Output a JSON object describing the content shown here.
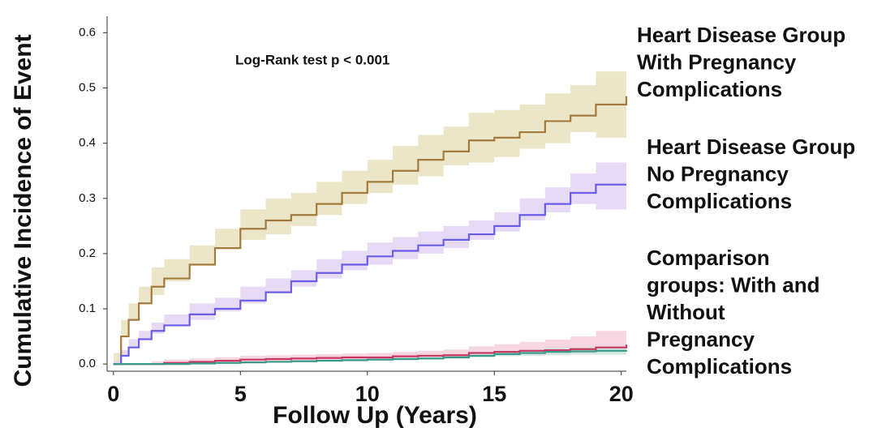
{
  "chart_data": {
    "type": "step",
    "xlabel": "Follow Up (Years)",
    "ylabel": "Cumulative Incidence of Event",
    "annotations": [
      {
        "text": "Log-Rank test p < 0.001"
      }
    ],
    "group_labels": [
      {
        "lines": [
          "Heart Disease Group",
          "With Pregnancy",
          "Complications"
        ]
      },
      {
        "lines": [
          "Heart Disease Group",
          "No Pregnancy",
          "Complications"
        ]
      },
      {
        "lines": [
          "Comparison",
          "groups: With and",
          "Without",
          "Pregnancy",
          "Complications"
        ]
      }
    ],
    "xlim": [
      -0.25,
      20.2
    ],
    "ylim": [
      -0.013,
      0.63
    ],
    "xticks": [
      0,
      5,
      10,
      15,
      20
    ],
    "yticks": [
      {
        "value": 0,
        "label": "0.0"
      },
      0.1,
      0.2,
      0.3,
      0.4,
      0.5,
      0.6
    ],
    "x": [
      0,
      0.3,
      0.6,
      1,
      1.5,
      2,
      3,
      4,
      5,
      6,
      7,
      8,
      9,
      10,
      11,
      12,
      13,
      14,
      15,
      16,
      17,
      18,
      19,
      20.2
    ],
    "series": [
      {
        "color": "#a47a3c",
        "band_color": "#e6e2bd",
        "values": [
          0,
          0.05,
          0.08,
          0.11,
          0.14,
          0.155,
          0.18,
          0.21,
          0.245,
          0.26,
          0.27,
          0.29,
          0.31,
          0.33,
          0.35,
          0.37,
          0.385,
          0.405,
          0.41,
          0.42,
          0.44,
          0.45,
          0.47,
          0.485
        ],
        "lower": [
          0,
          0.02,
          0.05,
          0.08,
          0.11,
          0.125,
          0.15,
          0.18,
          0.21,
          0.225,
          0.235,
          0.25,
          0.27,
          0.29,
          0.31,
          0.325,
          0.34,
          0.36,
          0.365,
          0.375,
          0.39,
          0.4,
          0.42,
          0.41
        ],
        "upper": [
          0,
          0.08,
          0.11,
          0.14,
          0.175,
          0.19,
          0.215,
          0.245,
          0.28,
          0.3,
          0.31,
          0.33,
          0.35,
          0.37,
          0.395,
          0.415,
          0.43,
          0.455,
          0.46,
          0.47,
          0.49,
          0.505,
          0.53,
          0.56
        ]
      },
      {
        "color": "#6a5ee8",
        "band_color": "#e2d4f2",
        "values": [
          0,
          0.015,
          0.03,
          0.045,
          0.06,
          0.07,
          0.09,
          0.1,
          0.115,
          0.13,
          0.15,
          0.165,
          0.18,
          0.195,
          0.205,
          0.215,
          0.225,
          0.235,
          0.25,
          0.27,
          0.29,
          0.31,
          0.325,
          0.325
        ],
        "lower": [
          0,
          0.005,
          0.015,
          0.03,
          0.045,
          0.055,
          0.07,
          0.08,
          0.095,
          0.11,
          0.13,
          0.14,
          0.155,
          0.17,
          0.18,
          0.19,
          0.2,
          0.21,
          0.225,
          0.24,
          0.26,
          0.275,
          0.29,
          0.28
        ],
        "upper": [
          0,
          0.025,
          0.045,
          0.06,
          0.075,
          0.09,
          0.11,
          0.12,
          0.14,
          0.155,
          0.17,
          0.19,
          0.205,
          0.22,
          0.23,
          0.24,
          0.25,
          0.26,
          0.275,
          0.3,
          0.32,
          0.345,
          0.365,
          0.37
        ]
      },
      {
        "color": "#c8375f",
        "band_color": "#f3cfdc",
        "values": [
          0,
          0,
          0,
          0,
          0,
          0.002,
          0.004,
          0.006,
          0.008,
          0.009,
          0.01,
          0.011,
          0.012,
          0.012,
          0.014,
          0.015,
          0.016,
          0.02,
          0.022,
          0.024,
          0.025,
          0.027,
          0.03,
          0.035
        ],
        "lower": [
          0,
          0,
          0,
          0,
          0,
          0,
          0.001,
          0.002,
          0.003,
          0.004,
          0.005,
          0.006,
          0.007,
          0.007,
          0.008,
          0.009,
          0.01,
          0.012,
          0.014,
          0.015,
          0.016,
          0.017,
          0.018,
          0.02
        ],
        "upper": [
          0,
          0,
          0,
          0,
          0.005,
          0.008,
          0.01,
          0.012,
          0.015,
          0.016,
          0.017,
          0.018,
          0.019,
          0.02,
          0.022,
          0.024,
          0.026,
          0.032,
          0.036,
          0.04,
          0.044,
          0.05,
          0.06,
          0.068
        ]
      },
      {
        "color": "#3a9a8a",
        "band_color": "#cfe6df",
        "values": [
          0,
          0,
          0,
          0,
          0,
          0,
          0.001,
          0.002,
          0.003,
          0.004,
          0.005,
          0.006,
          0.007,
          0.008,
          0.009,
          0.01,
          0.012,
          0.015,
          0.018,
          0.02,
          0.022,
          0.023,
          0.024,
          0.025
        ],
        "lower": [
          0,
          0,
          0,
          0,
          0,
          0,
          0,
          0.001,
          0.002,
          0.003,
          0.003,
          0.004,
          0.005,
          0.005,
          0.006,
          0.007,
          0.008,
          0.01,
          0.012,
          0.014,
          0.015,
          0.016,
          0.017,
          0.017
        ],
        "upper": [
          0,
          0,
          0,
          0,
          0,
          0.001,
          0.002,
          0.003,
          0.004,
          0.005,
          0.007,
          0.008,
          0.009,
          0.011,
          0.012,
          0.013,
          0.016,
          0.02,
          0.024,
          0.026,
          0.029,
          0.03,
          0.031,
          0.033
        ]
      }
    ]
  }
}
